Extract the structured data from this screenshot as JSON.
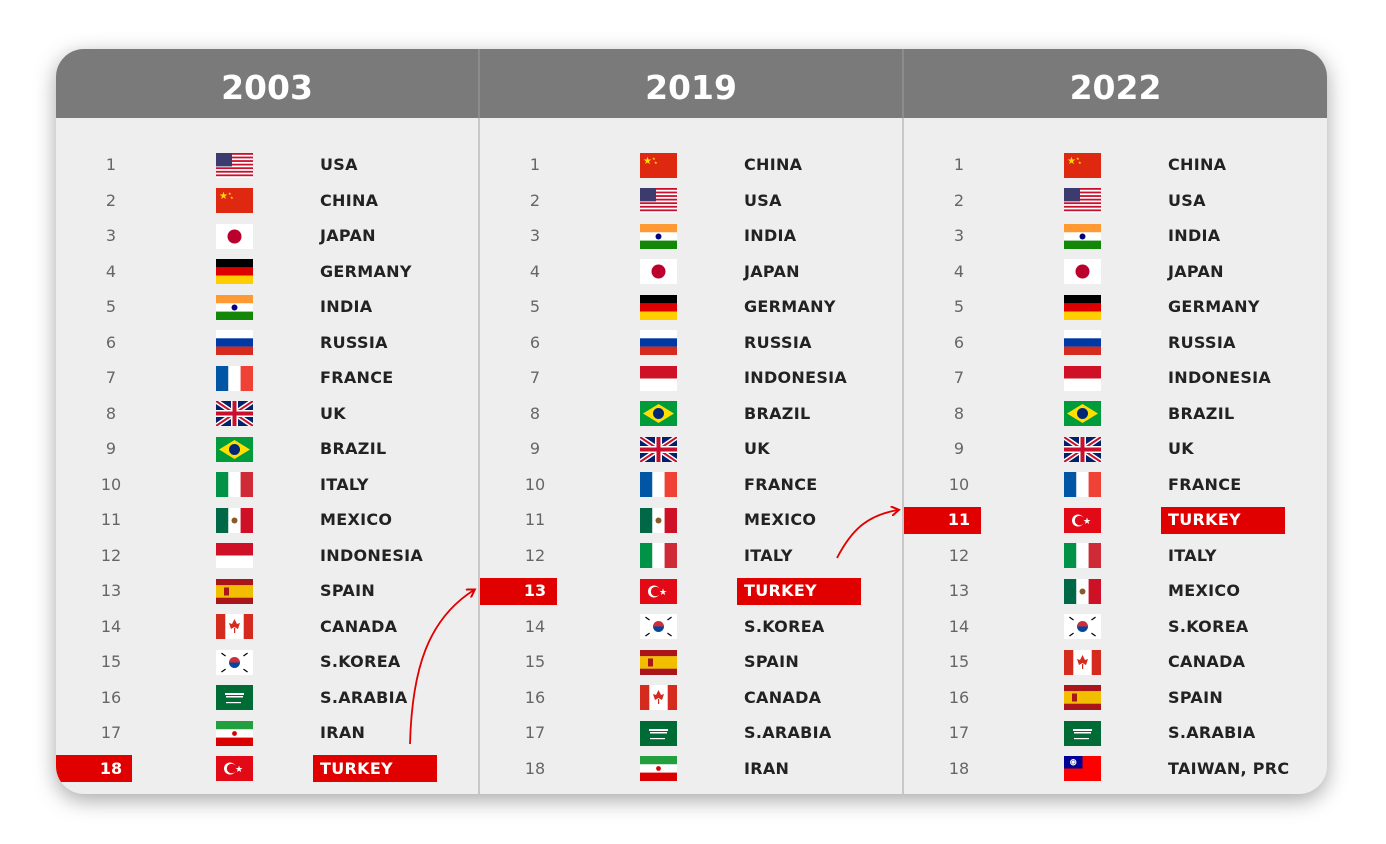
{
  "columns": [
    {
      "year": "2003",
      "rows": [
        {
          "rank": "1",
          "country": "USA",
          "flag": "us-flag"
        },
        {
          "rank": "2",
          "country": "CHINA",
          "flag": "china-flag"
        },
        {
          "rank": "3",
          "country": "JAPAN",
          "flag": "japan-flag"
        },
        {
          "rank": "4",
          "country": "GERMANY",
          "flag": "germany-flag"
        },
        {
          "rank": "5",
          "country": "INDIA",
          "flag": "india-flag"
        },
        {
          "rank": "6",
          "country": "RUSSIA",
          "flag": "russia-flag"
        },
        {
          "rank": "7",
          "country": "FRANCE",
          "flag": "france-flag"
        },
        {
          "rank": "8",
          "country": "UK",
          "flag": "uk-flag"
        },
        {
          "rank": "9",
          "country": "BRAZIL",
          "flag": "brazil-flag"
        },
        {
          "rank": "10",
          "country": "ITALY",
          "flag": "italy-flag"
        },
        {
          "rank": "11",
          "country": "MEXICO",
          "flag": "mexico-flag"
        },
        {
          "rank": "12",
          "country": "INDONESIA",
          "flag": "indonesia-flag"
        },
        {
          "rank": "13",
          "country": "SPAIN",
          "flag": "spain-flag"
        },
        {
          "rank": "14",
          "country": "CANADA",
          "flag": "canada-flag"
        },
        {
          "rank": "15",
          "country": "S.KOREA",
          "flag": "south-korea-flag"
        },
        {
          "rank": "16",
          "country": "S.ARABIA",
          "flag": "saudi-arabia-flag"
        },
        {
          "rank": "17",
          "country": "IRAN",
          "flag": "iran-flag"
        },
        {
          "rank": "18",
          "country": "TURKEY",
          "flag": "turkey-flag",
          "highlight": true
        }
      ]
    },
    {
      "year": "2019",
      "rows": [
        {
          "rank": "1",
          "country": "CHINA",
          "flag": "china-flag"
        },
        {
          "rank": "2",
          "country": "USA",
          "flag": "us-flag"
        },
        {
          "rank": "3",
          "country": "INDIA",
          "flag": "india-flag"
        },
        {
          "rank": "4",
          "country": "JAPAN",
          "flag": "japan-flag"
        },
        {
          "rank": "5",
          "country": "GERMANY",
          "flag": "germany-flag"
        },
        {
          "rank": "6",
          "country": "RUSSIA",
          "flag": "russia-flag"
        },
        {
          "rank": "7",
          "country": "INDONESIA",
          "flag": "indonesia-flag"
        },
        {
          "rank": "8",
          "country": "BRAZIL",
          "flag": "brazil-flag"
        },
        {
          "rank": "9",
          "country": "UK",
          "flag": "uk-flag"
        },
        {
          "rank": "10",
          "country": "FRANCE",
          "flag": "france-flag"
        },
        {
          "rank": "11",
          "country": "MEXICO",
          "flag": "mexico-flag"
        },
        {
          "rank": "12",
          "country": "ITALY",
          "flag": "italy-flag"
        },
        {
          "rank": "13",
          "country": "TURKEY",
          "flag": "turkey-flag",
          "highlight": true
        },
        {
          "rank": "14",
          "country": "S.KOREA",
          "flag": "south-korea-flag"
        },
        {
          "rank": "15",
          "country": "SPAIN",
          "flag": "spain-flag"
        },
        {
          "rank": "16",
          "country": "CANADA",
          "flag": "canada-flag"
        },
        {
          "rank": "17",
          "country": "S.ARABIA",
          "flag": "saudi-arabia-flag"
        },
        {
          "rank": "18",
          "country": "IRAN",
          "flag": "iran-flag"
        }
      ]
    },
    {
      "year": "2022",
      "rows": [
        {
          "rank": "1",
          "country": "CHINA",
          "flag": "china-flag"
        },
        {
          "rank": "2",
          "country": "USA",
          "flag": "us-flag"
        },
        {
          "rank": "3",
          "country": "INDIA",
          "flag": "india-flag"
        },
        {
          "rank": "4",
          "country": "JAPAN",
          "flag": "japan-flag"
        },
        {
          "rank": "5",
          "country": "GERMANY",
          "flag": "germany-flag"
        },
        {
          "rank": "6",
          "country": "RUSSIA",
          "flag": "russia-flag"
        },
        {
          "rank": "7",
          "country": "INDONESIA",
          "flag": "indonesia-flag"
        },
        {
          "rank": "8",
          "country": "BRAZIL",
          "flag": "brazil-flag"
        },
        {
          "rank": "9",
          "country": "UK",
          "flag": "uk-flag"
        },
        {
          "rank": "10",
          "country": "FRANCE",
          "flag": "france-flag"
        },
        {
          "rank": "11",
          "country": "TURKEY",
          "flag": "turkey-flag",
          "highlight": true
        },
        {
          "rank": "12",
          "country": "ITALY",
          "flag": "italy-flag"
        },
        {
          "rank": "13",
          "country": "MEXICO",
          "flag": "mexico-flag"
        },
        {
          "rank": "14",
          "country": "S.KOREA",
          "flag": "south-korea-flag"
        },
        {
          "rank": "15",
          "country": "CANADA",
          "flag": "canada-flag"
        },
        {
          "rank": "16",
          "country": "SPAIN",
          "flag": "spain-flag"
        },
        {
          "rank": "17",
          "country": "S.ARABIA",
          "flag": "saudi-arabia-flag"
        },
        {
          "rank": "18",
          "country": "TAIWAN, PRC",
          "flag": "taiwan-flag"
        }
      ]
    }
  ],
  "colors": {
    "header": "#7a7a7a",
    "background": "#eeeeee",
    "highlight": "#e10000",
    "arrow": "#e10000"
  },
  "icons": [
    "rank-change-arrow-icon"
  ]
}
